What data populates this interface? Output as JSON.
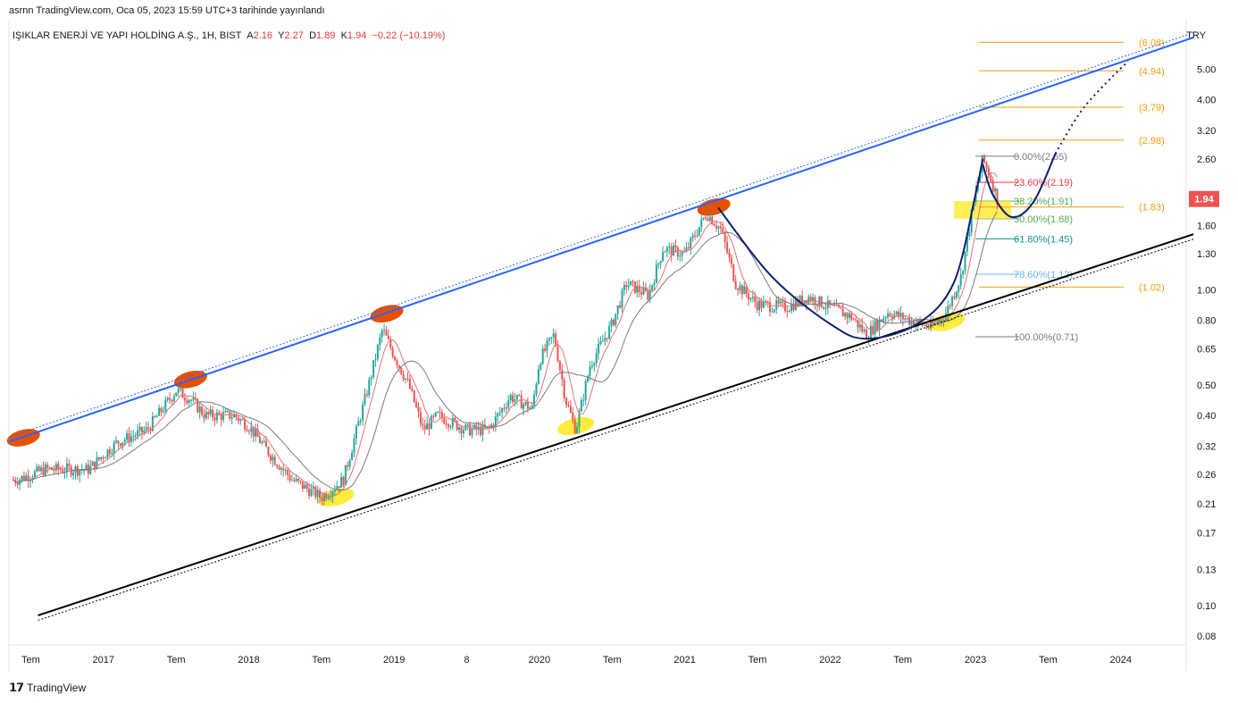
{
  "header": {
    "published": "asrnn TradingView.com, Oca 05, 2023 15:59 UTC+3 tarihinde yayınlandı"
  },
  "legend": {
    "symbol": "IŞIKLAR ENERJİ VE YAPI HOLDİNG A.Ş., 1H, BIST",
    "o_label": "A",
    "o_value": "2.16",
    "h_label": "Y",
    "h_value": "2.27",
    "l_label": "D",
    "l_value": "1.89",
    "c_label": "K",
    "c_value": "1.94",
    "change": "−0.22 (−10.19%)"
  },
  "currency": "TRY",
  "footer": {
    "brand": "TradingView",
    "logo": "tradingview-logo-icon"
  },
  "colors": {
    "up": "#26a69a",
    "down": "#ef5350",
    "channel_top": "#2962ff",
    "channel_bottom": "#000000",
    "cup": "#0d1f6e",
    "fib_ext": "#f59d0b",
    "orange_mark": "#e65100",
    "yellow_mark": "#ffeb3b",
    "price_tag": "#ef5350"
  },
  "chart_data": {
    "type": "candlestick",
    "y_scale": "log",
    "ylim": [
      0.075,
      6.9
    ],
    "x_ticks": [
      "Tem",
      "2017",
      "Tem",
      "2018",
      "Tem",
      "2019",
      "8",
      "2020",
      "Tem",
      "2021",
      "Tem",
      "2022",
      "Tem",
      "2023",
      "Tem",
      "2024"
    ],
    "y_ticks": [
      "5.00",
      "4.00",
      "3.20",
      "2.60",
      "1.60",
      "1.30",
      "1.00",
      "0.80",
      "0.65",
      "0.50",
      "0.40",
      "0.32",
      "0.26",
      "0.21",
      "0.17",
      "0.13",
      "0.10",
      "0.08"
    ],
    "last_price": "1.94",
    "price_path": [
      [
        2016.4,
        0.25
      ],
      [
        2016.6,
        0.27
      ],
      [
        2016.9,
        0.27
      ],
      [
        2017.0,
        0.3
      ],
      [
        2017.1,
        0.33
      ],
      [
        2017.3,
        0.36
      ],
      [
        2017.5,
        0.48
      ],
      [
        2017.6,
        0.45
      ],
      [
        2017.7,
        0.4
      ],
      [
        2017.9,
        0.4
      ],
      [
        2018.0,
        0.37
      ],
      [
        2018.15,
        0.3
      ],
      [
        2018.3,
        0.25
      ],
      [
        2018.5,
        0.22
      ],
      [
        2018.65,
        0.25
      ],
      [
        2018.8,
        0.45
      ],
      [
        2018.92,
        0.75
      ],
      [
        2019.0,
        0.62
      ],
      [
        2019.1,
        0.5
      ],
      [
        2019.2,
        0.36
      ],
      [
        2019.3,
        0.4
      ],
      [
        2019.5,
        0.36
      ],
      [
        2019.65,
        0.36
      ],
      [
        2019.8,
        0.46
      ],
      [
        2019.95,
        0.42
      ],
      [
        2020.0,
        0.6
      ],
      [
        2020.1,
        0.72
      ],
      [
        2020.18,
        0.45
      ],
      [
        2020.25,
        0.36
      ],
      [
        2020.35,
        0.58
      ],
      [
        2020.5,
        0.78
      ],
      [
        2020.6,
        1.05
      ],
      [
        2020.75,
        0.96
      ],
      [
        2020.85,
        1.35
      ],
      [
        2021.0,
        1.3
      ],
      [
        2021.15,
        1.75
      ],
      [
        2021.25,
        1.55
      ],
      [
        2021.35,
        1.05
      ],
      [
        2021.5,
        0.9
      ],
      [
        2021.7,
        0.88
      ],
      [
        2021.85,
        0.95
      ],
      [
        2022.0,
        0.88
      ],
      [
        2022.15,
        0.82
      ],
      [
        2022.25,
        0.72
      ],
      [
        2022.4,
        0.85
      ],
      [
        2022.55,
        0.8
      ],
      [
        2022.7,
        0.76
      ],
      [
        2022.8,
        0.85
      ],
      [
        2022.9,
        1.1
      ],
      [
        2022.98,
        1.8
      ],
      [
        2023.05,
        2.6
      ],
      [
        2023.1,
        2.3
      ],
      [
        2023.15,
        1.94
      ]
    ],
    "fib_retracement": [
      {
        "label": "0.00%(2.65)",
        "value": 2.65,
        "color": "#787b86"
      },
      {
        "label": "23.60%(2.19)",
        "value": 2.19,
        "color": "#f23645"
      },
      {
        "label": "38.20%(1.91)",
        "value": 1.91,
        "color": "#4caf50"
      },
      {
        "label": "50.00%(1.68)",
        "value": 1.68,
        "color": "#4caf50"
      },
      {
        "label": "61.80%(1.45)",
        "value": 1.45,
        "color": "#089981"
      },
      {
        "label": "78.60%(1.12)",
        "value": 1.12,
        "color": "#64b5f6"
      },
      {
        "label": "100.00%(0.71)",
        "value": 0.71,
        "color": "#787b86"
      }
    ],
    "fib_extension": [
      {
        "label": "(6.08)",
        "value": 6.08
      },
      {
        "label": "(4.94)",
        "value": 4.94
      },
      {
        "label": "(3.79)",
        "value": 3.79
      },
      {
        "label": "(2.98)",
        "value": 2.98
      },
      {
        "label": "(1.83)",
        "value": 1.83
      },
      {
        "label": "(1.02)",
        "value": 1.02
      }
    ],
    "channel_upper": [
      [
        2016.35,
        0.33
      ],
      [
        2024.5,
        6.3
      ]
    ],
    "channel_lower": [
      [
        2016.55,
        0.093
      ],
      [
        2024.5,
        1.5
      ]
    ],
    "top_touches": [
      [
        2016.45,
        0.34
      ],
      [
        2017.6,
        0.52
      ],
      [
        2018.95,
        0.84
      ],
      [
        2021.2,
        1.83
      ]
    ],
    "bottom_touches": [
      [
        2018.6,
        0.22
      ],
      [
        2020.25,
        0.37
      ],
      [
        2022.8,
        0.79
      ]
    ],
    "cup_curve": [
      [
        2021.23,
        1.82
      ],
      [
        2021.6,
        1.1
      ],
      [
        2022.0,
        0.78
      ],
      [
        2022.25,
        0.7
      ],
      [
        2022.6,
        0.78
      ],
      [
        2022.85,
        1.05
      ],
      [
        2023.0,
        2.0
      ],
      [
        2023.05,
        2.6
      ]
    ],
    "handle_curve": [
      [
        2023.05,
        2.5
      ],
      [
        2023.12,
        2.0
      ],
      [
        2023.25,
        1.7
      ],
      [
        2023.4,
        1.9
      ],
      [
        2023.55,
        2.7
      ]
    ],
    "projection": [
      [
        2023.55,
        2.7
      ],
      [
        2023.75,
        3.8
      ],
      [
        2024.05,
        5.3
      ]
    ]
  }
}
